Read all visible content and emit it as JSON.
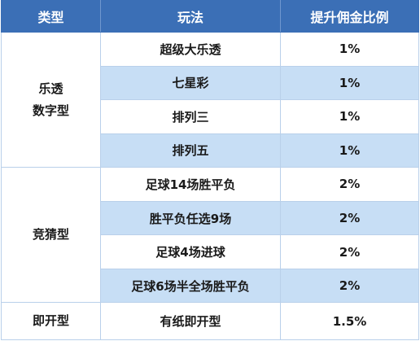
{
  "table": {
    "headers": [
      "类型",
      "玩法",
      "提升佣金比例"
    ],
    "groups": [
      {
        "category_lines": [
          "乐透",
          "数字型"
        ],
        "rows": [
          {
            "game": "超级大乐透",
            "rate": "1%"
          },
          {
            "game": "七星彩",
            "rate": "1%"
          },
          {
            "game": "排列三",
            "rate": "1%"
          },
          {
            "game": "排列五",
            "rate": "1%"
          }
        ]
      },
      {
        "category_lines": [
          "竞猜型"
        ],
        "rows": [
          {
            "game": "足球14场胜平负",
            "rate": "2%"
          },
          {
            "game": "胜平负任选9场",
            "rate": "2%"
          },
          {
            "game": "足球4场进球",
            "rate": "2%"
          },
          {
            "game": "足球6场半全场胜平负",
            "rate": "2%"
          }
        ]
      },
      {
        "category_lines": [
          "即开型"
        ],
        "rows": [
          {
            "game": "有纸即开型",
            "rate": "1.5%"
          }
        ]
      }
    ]
  },
  "colors": {
    "header_bg": "#3b6fb6",
    "header_text": "#ffffff",
    "row_shade": "#c7def5",
    "border": "#b9d0ea"
  }
}
